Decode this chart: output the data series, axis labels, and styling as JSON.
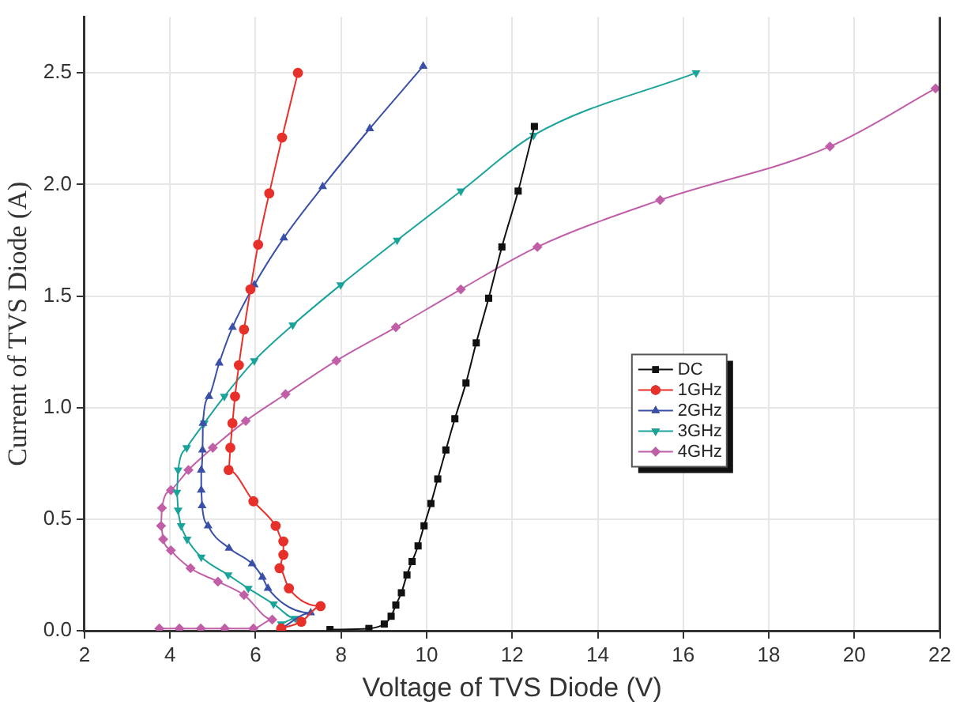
{
  "chart_data": {
    "type": "line",
    "xlabel": "Voltage of TVS Diode (V)",
    "ylabel": "Current of TVS Diode (A)",
    "xlim": [
      2,
      22
    ],
    "xticks": [
      2,
      4,
      6,
      8,
      10,
      12,
      14,
      16,
      18,
      20,
      22
    ],
    "ylim": [
      0,
      2.75
    ],
    "yticks": [
      {
        "value": 0,
        "label": "0.0"
      },
      0.5,
      {
        "value": 1,
        "label": "1.0"
      },
      1.5,
      {
        "value": 2,
        "label": "2.0"
      },
      2.5
    ],
    "grid": true,
    "legend": "right",
    "line_style": "solid",
    "series": [
      {
        "name": "DC",
        "color": "#111111",
        "marker": "square",
        "x": [
          7.74,
          8.65,
          9.01,
          9.17,
          9.28,
          9.41,
          9.54,
          9.66,
          9.8,
          9.94,
          10.1,
          10.26,
          10.45,
          10.66,
          10.92,
          11.16,
          11.45,
          11.76,
          12.14,
          12.52
        ],
        "values": [
          0.005,
          0.01,
          0.03,
          0.065,
          0.115,
          0.17,
          0.25,
          0.31,
          0.38,
          0.47,
          0.57,
          0.68,
          0.81,
          0.95,
          1.11,
          1.29,
          1.49,
          1.72,
          1.97,
          2.26
        ]
      },
      {
        "name": "1GHz",
        "color": "#e8302a",
        "marker": "circle",
        "x": [
          6.6,
          7.07,
          7.52,
          6.78,
          6.56,
          6.65,
          6.65,
          6.47,
          5.95,
          5.37,
          5.41,
          5.46,
          5.52,
          5.61,
          5.73,
          5.88,
          6.06,
          6.32,
          6.62,
          6.99
        ],
        "values": [
          0.01,
          0.04,
          0.11,
          0.19,
          0.28,
          0.34,
          0.4,
          0.47,
          0.58,
          0.72,
          0.82,
          0.93,
          1.05,
          1.19,
          1.35,
          1.53,
          1.73,
          1.96,
          2.21,
          2.5
        ]
      },
      {
        "name": "2GHz",
        "color": "#3a4fa8",
        "marker": "triangle",
        "x": [
          6.6,
          7.29,
          6.29,
          6.16,
          5.92,
          5.38,
          4.89,
          4.75,
          4.73,
          4.73,
          4.76,
          4.77,
          4.91,
          5.15,
          5.46,
          5.97,
          6.66,
          7.57,
          8.67,
          9.92
        ],
        "values": [
          0.01,
          0.08,
          0.19,
          0.24,
          0.3,
          0.37,
          0.47,
          0.56,
          0.63,
          0.72,
          0.81,
          0.93,
          1.05,
          1.2,
          1.36,
          1.55,
          1.76,
          1.99,
          2.25,
          2.53
        ]
      },
      {
        "name": "3GHz",
        "color": "#1aa39a",
        "marker": "triangle-down",
        "x": [
          6.6,
          6.93,
          6.42,
          5.83,
          5.36,
          4.73,
          4.4,
          4.26,
          4.19,
          4.16,
          4.19,
          4.39,
          4.8,
          5.27,
          5.97,
          6.87,
          7.99,
          9.31,
          10.8,
          12.5,
          16.3
        ],
        "values": [
          0.03,
          0.055,
          0.12,
          0.19,
          0.25,
          0.33,
          0.41,
          0.47,
          0.54,
          0.62,
          0.72,
          0.82,
          0.93,
          1.05,
          1.21,
          1.37,
          1.55,
          1.75,
          1.97,
          2.22,
          2.5
        ]
      },
      {
        "name": "4GHz",
        "color": "#c05fa8",
        "marker": "diamond",
        "x": [
          3.75,
          4.22,
          4.72,
          5.28,
          5.95,
          6.39,
          5.73,
          5.12,
          4.48,
          4.02,
          3.84,
          3.79,
          3.81,
          4.02,
          4.43,
          5.0,
          5.77,
          6.7,
          7.89,
          9.28,
          10.8,
          12.59,
          15.46,
          19.43,
          21.9
        ],
        "values": [
          0.01,
          0.01,
          0.01,
          0.01,
          0.01,
          0.05,
          0.16,
          0.22,
          0.28,
          0.36,
          0.41,
          0.47,
          0.55,
          0.63,
          0.72,
          0.82,
          0.94,
          1.06,
          1.21,
          1.36,
          1.53,
          1.72,
          1.93,
          2.17,
          2.43
        ]
      }
    ]
  }
}
